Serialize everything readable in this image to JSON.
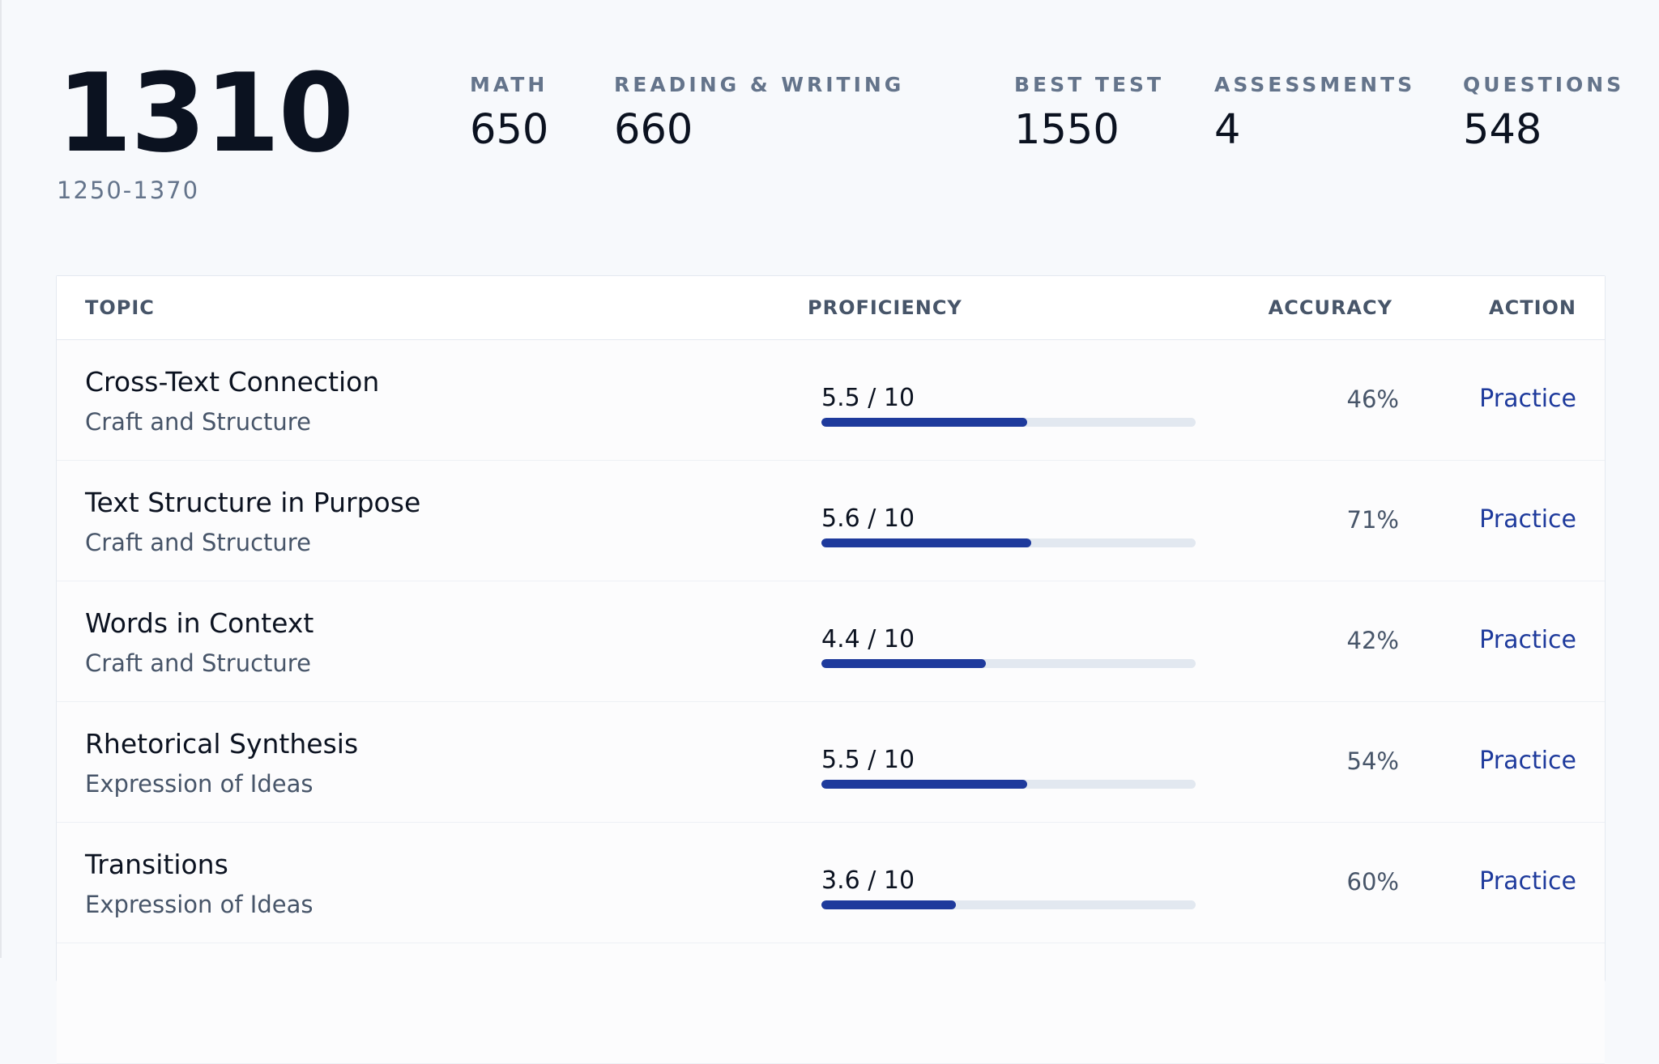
{
  "summary": {
    "total_score": "1310",
    "score_range": "1250-1370",
    "stats": [
      {
        "label": "MATH",
        "value": "650"
      },
      {
        "label": "READING & WRITING",
        "value": "660"
      },
      {
        "label": "BEST TEST",
        "value": "1550"
      },
      {
        "label": "ASSESSMENTS",
        "value": "4"
      },
      {
        "label": "QUESTIONS",
        "value": "548"
      }
    ]
  },
  "table": {
    "headers": {
      "topic": "TOPIC",
      "proficiency": "PROFICIENCY",
      "accuracy": "ACCURACY",
      "action": "ACTION"
    },
    "rows": [
      {
        "topic": "Cross-Text Connection",
        "category": "Craft and Structure",
        "proficiency_label": "5.5 / 10",
        "proficiency": 5.5,
        "accuracy": "46%",
        "action": "Practice"
      },
      {
        "topic": "Text Structure in Purpose",
        "category": "Craft and Structure",
        "proficiency_label": "5.6 / 10",
        "proficiency": 5.6,
        "accuracy": "71%",
        "action": "Practice"
      },
      {
        "topic": "Words in Context",
        "category": "Craft and Structure",
        "proficiency_label": "4.4 / 10",
        "proficiency": 4.4,
        "accuracy": "42%",
        "action": "Practice"
      },
      {
        "topic": "Rhetorical Synthesis",
        "category": "Expression of Ideas",
        "proficiency_label": "5.5 / 10",
        "proficiency": 5.5,
        "accuracy": "54%",
        "action": "Practice"
      },
      {
        "topic": "Transitions",
        "category": "Expression of Ideas",
        "proficiency_label": "3.6 / 10",
        "proficiency": 3.6,
        "accuracy": "60%",
        "action": "Practice"
      }
    ],
    "proficiency_max": 10
  },
  "colors": {
    "accent": "#1e3a9c",
    "track": "#e2e8f0",
    "muted_text": "#64748b"
  }
}
